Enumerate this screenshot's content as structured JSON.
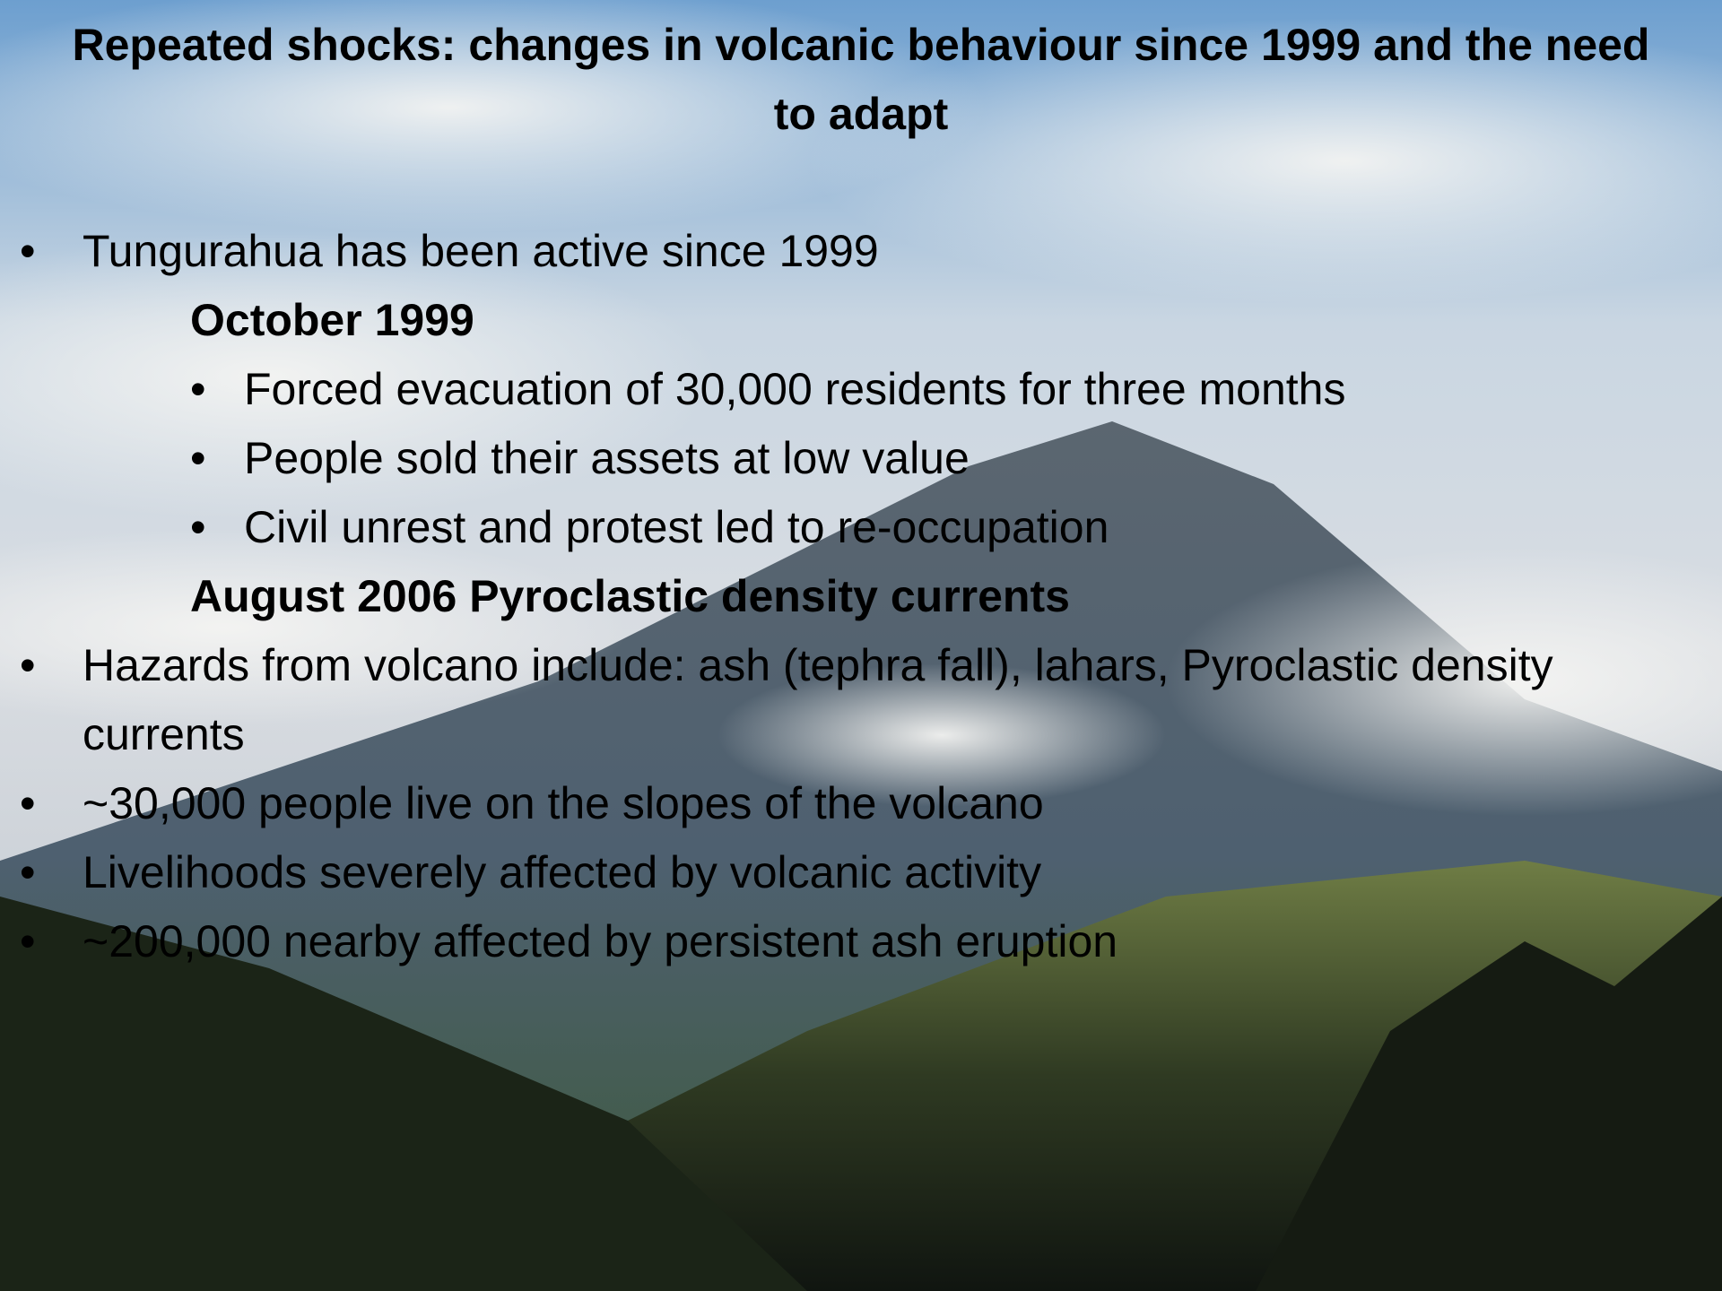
{
  "title": "Repeated shocks: changes in volcanic behaviour since 1999 and the need to adapt",
  "intro_bullet": "Tungurahua has been active since 1999",
  "events": [
    {
      "heading": "October 1999",
      "points": [
        "Forced evacuation of 30,000 residents for three months",
        "People sold their assets at low value",
        "Civil unrest and protest led to re-occupation"
      ]
    },
    {
      "heading": "August 2006 Pyroclastic density currents"
    }
  ],
  "bullets": [
    "Hazards from volcano include: ash (tephra fall), lahars, Pyroclastic density currents",
    "~30,000 people live on the slopes of the volcano",
    "Livelihoods severely affected by volcanic activity",
    "~200,000 nearby affected by persistent ash eruption"
  ]
}
